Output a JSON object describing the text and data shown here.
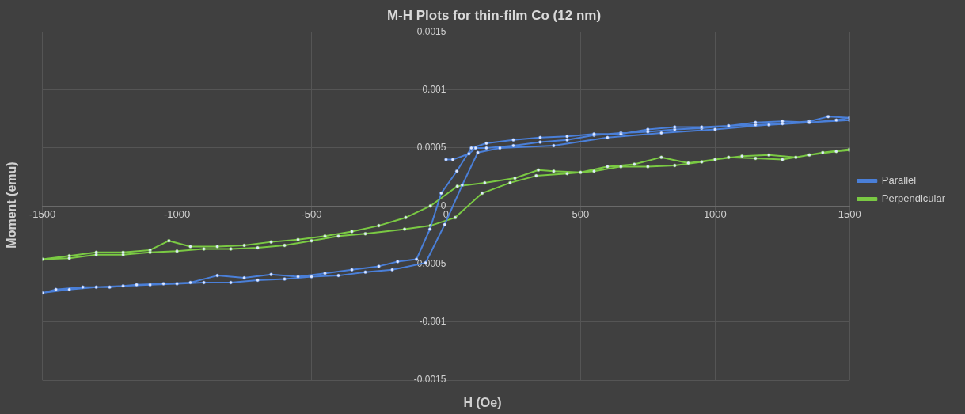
{
  "chart_data": {
    "type": "line",
    "title": "M-H Plots for thin-film Co (12 nm)",
    "xlabel": "H (Oe)",
    "ylabel": "Moment (emu)",
    "xlim": [
      -1500,
      1500
    ],
    "xticks": [
      -1500,
      -1000,
      -500,
      0,
      500,
      1000,
      1500
    ],
    "ylim": [
      -0.0015,
      0.0015
    ],
    "yticks": [
      -0.0015,
      -0.001,
      -0.0005,
      0,
      0.0005,
      0.001,
      0.0015
    ],
    "grid": true,
    "legend": "right",
    "marker": "circle",
    "line_style": "solid",
    "series": [
      {
        "name": "Parallel",
        "color": "#4a7fd8",
        "x": [
          0,
          25,
          85,
          110,
          150,
          250,
          350,
          450,
          550,
          650,
          750,
          850,
          950,
          1050,
          1150,
          1250,
          1350,
          1420,
          1500,
          1450,
          1350,
          1250,
          1150,
          1050,
          950,
          850,
          750,
          650,
          550,
          450,
          350,
          250,
          150,
          94,
          40,
          -18,
          -60,
          -110,
          -180,
          -250,
          -350,
          -450,
          -550,
          -650,
          -750,
          -850,
          -950,
          -1050,
          -1150,
          -1250,
          -1350,
          -1450,
          -1500,
          -1400,
          -1300,
          -1200,
          -1100,
          -1000,
          -900,
          -800,
          -700,
          -600,
          -500,
          -400,
          -300,
          -200,
          -76,
          -5,
          60,
          118,
          200,
          400,
          600,
          800,
          1000,
          1200,
          1500
        ],
        "values": [
          0.0004,
          0.0004,
          0.00045,
          0.0005,
          0.0005,
          0.00052,
          0.00055,
          0.00057,
          0.00061,
          0.00063,
          0.00064,
          0.00066,
          0.00067,
          0.00069,
          0.0007,
          0.00071,
          0.00073,
          0.00077,
          0.00076,
          0.00074,
          0.00072,
          0.00073,
          0.00072,
          0.00069,
          0.00068,
          0.00068,
          0.00066,
          0.00062,
          0.00062,
          0.0006,
          0.00059,
          0.00057,
          0.00054,
          0.0005,
          0.0003,
          0.00011,
          -0.0002,
          -0.00046,
          -0.00048,
          -0.00052,
          -0.00055,
          -0.00058,
          -0.00061,
          -0.00059,
          -0.00062,
          -0.0006,
          -0.00066,
          -0.00067,
          -0.00068,
          -0.0007,
          -0.0007,
          -0.00072,
          -0.00075,
          -0.00072,
          -0.0007,
          -0.00069,
          -0.00068,
          -0.00067,
          -0.00066,
          -0.00066,
          -0.00064,
          -0.00063,
          -0.00061,
          -0.0006,
          -0.00057,
          -0.00055,
          -0.00049,
          -0.00016,
          0.00018,
          0.00046,
          0.0005,
          0.00052,
          0.00059,
          0.00063,
          0.00066,
          0.0007,
          0.00074
        ]
      },
      {
        "name": "Perpendicular",
        "color": "#7ac943",
        "x": [
          1500,
          1400,
          1300,
          1200,
          1100,
          1000,
          900,
          800,
          700,
          600,
          500,
          400,
          343,
          256,
          144,
          42,
          -58,
          -150,
          -250,
          -350,
          -450,
          -550,
          -650,
          -750,
          -850,
          -950,
          -1030,
          -1100,
          -1200,
          -1300,
          -1400,
          -1500,
          -1400,
          -1300,
          -1200,
          -1100,
          -1000,
          -900,
          -800,
          -700,
          -600,
          -500,
          -400,
          -300,
          -154,
          -58,
          34,
          134,
          238,
          335,
          450,
          550,
          650,
          750,
          850,
          950,
          1050,
          1150,
          1250,
          1350,
          1450,
          1500
        ],
        "values": [
          0.00049,
          0.00046,
          0.00042,
          0.00044,
          0.00043,
          0.0004,
          0.00037,
          0.00042,
          0.00036,
          0.00034,
          0.00029,
          0.0003,
          0.00031,
          0.00024,
          0.0002,
          0.00017,
          0,
          -0.0001,
          -0.00017,
          -0.00022,
          -0.00026,
          -0.00029,
          -0.00031,
          -0.00034,
          -0.00035,
          -0.00035,
          -0.0003,
          -0.00038,
          -0.0004,
          -0.0004,
          -0.00043,
          -0.00046,
          -0.00045,
          -0.00042,
          -0.00042,
          -0.0004,
          -0.00039,
          -0.00037,
          -0.00037,
          -0.00036,
          -0.00034,
          -0.0003,
          -0.00026,
          -0.00024,
          -0.0002,
          -0.00017,
          -0.0001,
          0.00011,
          0.0002,
          0.00026,
          0.00028,
          0.0003,
          0.00034,
          0.00034,
          0.00035,
          0.00038,
          0.00042,
          0.00041,
          0.0004,
          0.00044,
          0.00047,
          0.00048
        ]
      }
    ]
  }
}
